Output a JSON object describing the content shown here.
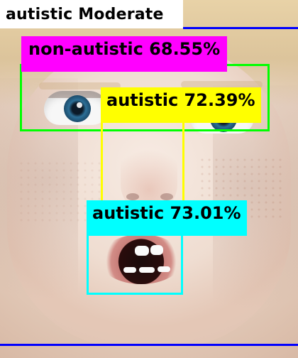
{
  "summary": {
    "label": "autistic Moderate"
  },
  "colors": {
    "banner_bg": "#ffffff",
    "banner_text": "#000000",
    "line_blue": "#0000ff",
    "box_green": "#00ff00",
    "label_magenta": "#ff00ff",
    "box_yellow": "#ffff00",
    "box_cyan": "#00ffff"
  },
  "detections": [
    {
      "label": "non-autistic 68.55%",
      "box_color": "box_green",
      "label_bg": "label_magenta"
    },
    {
      "label": "autistic 72.39%",
      "box_color": "box_yellow",
      "label_bg": "box_yellow"
    },
    {
      "label": "autistic 73.01%",
      "box_color": "box_cyan",
      "label_bg": "box_cyan"
    }
  ]
}
